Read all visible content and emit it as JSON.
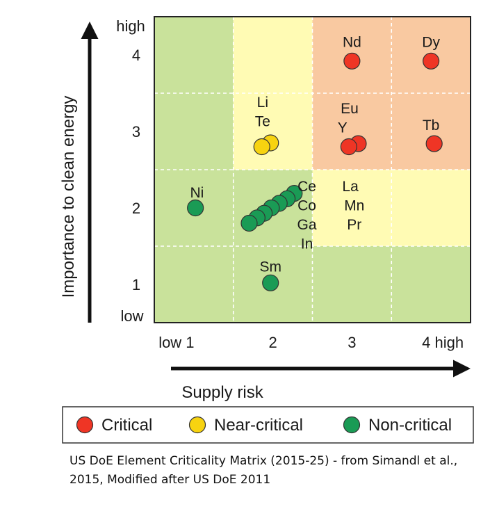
{
  "chart_data": {
    "type": "scatter",
    "xlabel": "Supply risk",
    "ylabel": "Importance to clean energy",
    "xlim": [
      0.5,
      4.5
    ],
    "ylim": [
      0.5,
      4.5
    ],
    "x_ticks": [
      {
        "value": 1,
        "label": "low 1"
      },
      {
        "value": 2,
        "label": "2"
      },
      {
        "value": 3,
        "label": "3"
      },
      {
        "value": 4,
        "label": "4 high"
      }
    ],
    "y_ticks": [
      {
        "value": 1,
        "label": "1"
      },
      {
        "value": 2,
        "label": "2"
      },
      {
        "value": 3,
        "label": "3"
      },
      {
        "value": 4,
        "label": "4"
      }
    ],
    "y_extreme_labels": {
      "high": "high",
      "low": "low"
    },
    "grid": "dashed",
    "legend_position": "bottom",
    "regions": [
      {
        "category": "Non-critical",
        "color": "#c9e29b",
        "x": [
          0.5,
          1.5
        ],
        "y": [
          0.5,
          4.5
        ]
      },
      {
        "category": "Non-critical",
        "color": "#c9e29b",
        "x": [
          1.5,
          2.5
        ],
        "y": [
          0.5,
          2.5
        ]
      },
      {
        "category": "Non-critical",
        "color": "#c9e29b",
        "x": [
          2.5,
          4.5
        ],
        "y": [
          0.5,
          1.5
        ]
      },
      {
        "category": "Near-critical",
        "color": "#fffbb4",
        "x": [
          1.5,
          2.5
        ],
        "y": [
          2.5,
          4.5
        ]
      },
      {
        "category": "Near-critical",
        "color": "#fffbb4",
        "x": [
          2.5,
          4.5
        ],
        "y": [
          1.5,
          2.5
        ]
      },
      {
        "category": "Critical",
        "color": "#f9c9a1",
        "x": [
          2.5,
          4.5
        ],
        "y": [
          2.5,
          4.5
        ]
      }
    ],
    "categories": [
      {
        "name": "Critical",
        "color": "#ef3525"
      },
      {
        "name": "Near-critical",
        "color": "#f7d310"
      },
      {
        "name": "Non-critical",
        "color": "#1a9b55"
      }
    ],
    "points": [
      {
        "label": "Nd",
        "category": "Critical",
        "x": 3.0,
        "y": 3.92
      },
      {
        "label": "Dy",
        "category": "Critical",
        "x": 4.0,
        "y": 3.92
      },
      {
        "label": "Eu",
        "category": "Critical",
        "x": 3.08,
        "y": 2.84
      },
      {
        "label": "Y",
        "category": "Critical",
        "x": 2.96,
        "y": 2.8
      },
      {
        "label": "Tb",
        "category": "Critical",
        "x": 4.04,
        "y": 2.84
      },
      {
        "label": "Li",
        "category": "Near-critical",
        "x": 1.97,
        "y": 2.85
      },
      {
        "label": "Te",
        "category": "Near-critical",
        "x": 1.86,
        "y": 2.8
      },
      {
        "label": "Ni",
        "category": "Non-critical",
        "x": 1.02,
        "y": 2.0
      },
      {
        "label": "Ce",
        "category": "Non-critical",
        "x": 2.27,
        "y": 2.19
      },
      {
        "label": "Co",
        "category": "Non-critical",
        "x": 2.18,
        "y": 2.12
      },
      {
        "label": "Ga",
        "category": "Non-critical",
        "x": 2.08,
        "y": 2.06
      },
      {
        "label": "In",
        "category": "Non-critical",
        "x": 1.98,
        "y": 2.0
      },
      {
        "label": "La",
        "category": "Non-critical",
        "x": 1.89,
        "y": 1.93
      },
      {
        "label": "Mn",
        "category": "Non-critical",
        "x": 1.8,
        "y": 1.87
      },
      {
        "label": "Pr",
        "category": "Non-critical",
        "x": 1.7,
        "y": 1.8
      },
      {
        "label": "Sm",
        "category": "Non-critical",
        "x": 1.97,
        "y": 1.02
      }
    ],
    "annotations": [
      {
        "text": "Nd",
        "x": 3.0,
        "y": 4.17
      },
      {
        "text": "Dy",
        "x": 4.0,
        "y": 4.17
      },
      {
        "text": "Li",
        "x": 1.87,
        "y": 3.38
      },
      {
        "text": "Te",
        "x": 1.87,
        "y": 3.13
      },
      {
        "text": "Eu",
        "x": 2.97,
        "y": 3.3
      },
      {
        "text": "Y",
        "x": 2.88,
        "y": 3.05
      },
      {
        "text": "Tb",
        "x": 4.0,
        "y": 3.08
      },
      {
        "text": "Ni",
        "x": 1.04,
        "y": 2.2
      },
      {
        "text": "Ce",
        "x": 2.43,
        "y": 2.28
      },
      {
        "text": "Co",
        "x": 2.43,
        "y": 2.03
      },
      {
        "text": "Ga",
        "x": 2.43,
        "y": 1.78
      },
      {
        "text": "In",
        "x": 2.43,
        "y": 1.53
      },
      {
        "text": "La",
        "x": 2.98,
        "y": 2.28
      },
      {
        "text": "Mn",
        "x": 3.03,
        "y": 2.03
      },
      {
        "text": "Pr",
        "x": 3.03,
        "y": 1.78
      },
      {
        "text": "Sm",
        "x": 1.97,
        "y": 1.23
      }
    ]
  },
  "caption": "US DoE Element Criticality Matrix (2015-25) - from Simandl et al., 2015, Modified after US DoE 2011"
}
